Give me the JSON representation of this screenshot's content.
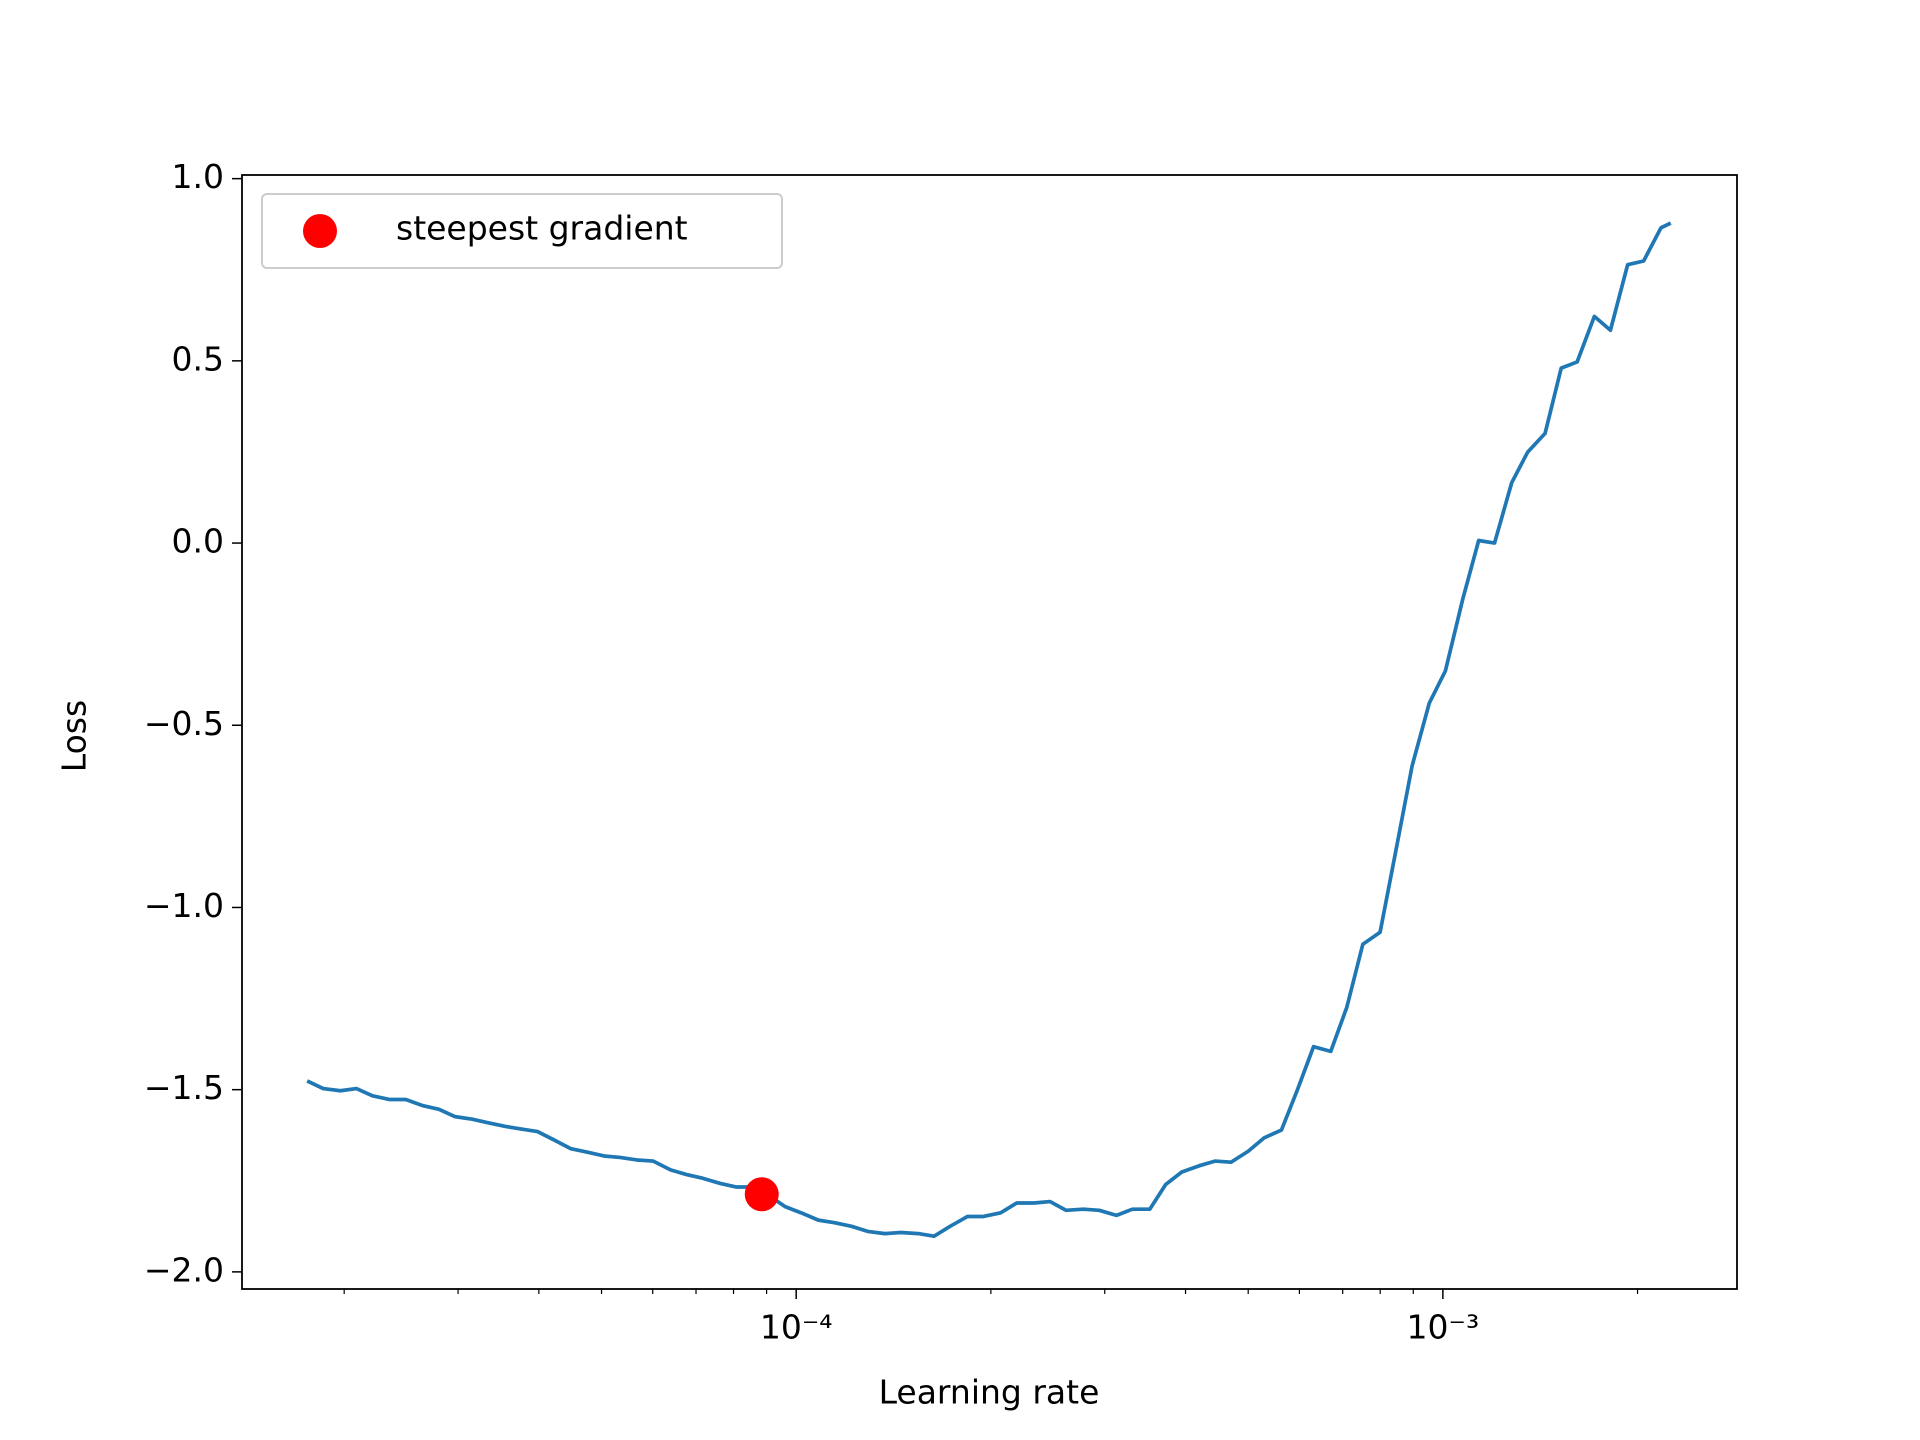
{
  "chart_data": {
    "type": "line",
    "xlabel": "Learning rate",
    "ylabel": "Loss",
    "xscale": "log",
    "xlim": [
      1.39e-05,
      0.00285
    ],
    "ylim": [
      -2.047,
      1.01
    ],
    "xticks": [
      {
        "value": 0.0001,
        "label": "10⁻⁴"
      },
      {
        "value": 0.001,
        "label": "10⁻³"
      }
    ],
    "xminorticks": [
      2e-05,
      3e-05,
      4e-05,
      5e-05,
      6e-05,
      7e-05,
      8e-05,
      9e-05,
      0.0002,
      0.0003,
      0.0004,
      0.0005,
      0.0006,
      0.0007,
      0.0008,
      0.0009,
      0.002
    ],
    "yticks": [
      {
        "value": 1.0,
        "label": "1.0"
      },
      {
        "value": 0.5,
        "label": "0.5"
      },
      {
        "value": 0.0,
        "label": "0.0"
      },
      {
        "value": -0.5,
        "label": "−0.5"
      },
      {
        "value": -1.0,
        "label": "−1.0"
      },
      {
        "value": -1.5,
        "label": "−1.5"
      },
      {
        "value": -2.0,
        "label": "−2.0"
      }
    ],
    "legend": "upper left",
    "x": [
      1.753e-05,
      1.856e-05,
      1.973e-05,
      2.089e-05,
      2.212e-05,
      2.352e-05,
      2.49e-05,
      2.648e-05,
      2.803e-05,
      2.968e-05,
      3.155e-05,
      3.341e-05,
      3.552e-05,
      3.76e-05,
      3.981e-05,
      4.233e-05,
      4.482e-05,
      4.765e-05,
      5.045e-05,
      5.341e-05,
      5.679e-05,
      6.012e-05,
      6.393e-05,
      6.768e-05,
      7.165e-05,
      7.618e-05,
      8.067e-05,
      8.542e-05,
      9.081e-05,
      9.613e-05,
      0.0001018,
      0.0001082,
      0.0001146,
      0.0001218,
      0.000129,
      0.0001371,
      0.0001452,
      0.0001544,
      0.0001634,
      0.000173,
      0.000184,
      0.0001948,
      0.0002071,
      0.0002193,
      0.0002331,
      0.0002468,
      0.0002613,
      0.0002779,
      0.0002942,
      0.0003128,
      0.0003311,
      0.0003522,
      0.0003728,
      0.0003947,
      0.0004197,
      0.0004443,
      0.0004704,
      0.0005,
      0.0005294,
      0.0005628,
      0.0005959,
      0.000631,
      0.0006709,
      0.0007103,
      0.000752,
      0.0007997,
      0.0008466,
      0.0008964,
      0.0009529,
      0.001009,
      0.001073,
      0.001136,
      0.001202,
      0.001278,
      0.001353,
      0.001439,
      0.001524,
      0.001613,
      0.001715,
      0.001816,
      0.001931,
      0.002044,
      0.002174,
      0.002251
    ],
    "series": [
      {
        "color": "#1f77b4",
        "values": [
          -1.476,
          -1.497,
          -1.503,
          -1.497,
          -1.517,
          -1.527,
          -1.527,
          -1.544,
          -1.554,
          -1.574,
          -1.581,
          -1.591,
          -1.601,
          -1.608,
          -1.615,
          -1.639,
          -1.662,
          -1.672,
          -1.682,
          -1.686,
          -1.693,
          -1.696,
          -1.72,
          -1.733,
          -1.743,
          -1.757,
          -1.767,
          -1.767,
          -1.791,
          -1.821,
          -1.838,
          -1.858,
          -1.865,
          -1.875,
          -1.889,
          -1.895,
          -1.892,
          -1.895,
          -1.902,
          -1.875,
          -1.848,
          -1.848,
          -1.838,
          -1.811,
          -1.811,
          -1.807,
          -1.831,
          -1.828,
          -1.831,
          -1.845,
          -1.828,
          -1.828,
          -1.76,
          -1.726,
          -1.709,
          -1.696,
          -1.699,
          -1.669,
          -1.632,
          -1.611,
          -1.5,
          -1.382,
          -1.395,
          -1.274,
          -1.101,
          -1.068,
          -0.841,
          -0.611,
          -0.439,
          -0.351,
          -0.155,
          0.007,
          0.0,
          0.166,
          0.25,
          0.301,
          0.48,
          0.497,
          0.622,
          0.584,
          0.764,
          0.774,
          0.865,
          0.878
        ]
      }
    ],
    "highlight": {
      "name": "steepest gradient",
      "color": "#ff0000",
      "x": [
        8.846e-05
      ],
      "values": [
        -1.787
      ]
    }
  }
}
